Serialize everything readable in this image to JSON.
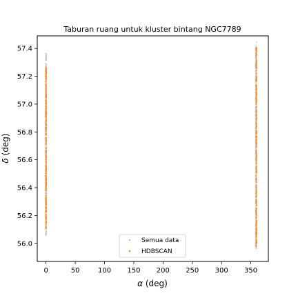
{
  "chart_data": {
    "type": "scatter",
    "title": "Taburan ruang untuk kluster bintang NGC7789",
    "xlabel_symbol": "α",
    "xlabel_unit": "(deg)",
    "ylabel_symbol": "δ",
    "ylabel_unit": "(deg)",
    "xlim": [
      -15,
      380
    ],
    "ylim": [
      55.87,
      57.49
    ],
    "xticks": [
      0,
      50,
      100,
      150,
      200,
      250,
      300,
      350
    ],
    "yticks": [
      56.0,
      56.2,
      56.4,
      56.6,
      56.8,
      57.0,
      57.2,
      57.4
    ],
    "ytick_labels": [
      "56.0",
      "56.2",
      "56.4",
      "56.6",
      "56.8",
      "57.0",
      "57.2",
      "57.4"
    ],
    "grid": false,
    "legend_position": "lower-center",
    "series": [
      {
        "name": "Semua data",
        "color": "#c0c0c0",
        "clusters": [
          {
            "x_center": 0.0,
            "x_spread": 0.6,
            "y_min": 56.05,
            "y_max": 57.37
          },
          {
            "x_center": 359.3,
            "x_spread": 0.6,
            "y_min": 55.96,
            "y_max": 57.45
          }
        ]
      },
      {
        "name": "HDBSCAN",
        "color": "#ff7f0e",
        "clusters": [
          {
            "x_center": 0.0,
            "x_spread": 0.4,
            "y_min": 56.1,
            "y_max": 57.26
          },
          {
            "x_center": 359.3,
            "x_spread": 0.4,
            "y_min": 55.98,
            "y_max": 57.42
          }
        ]
      }
    ]
  }
}
